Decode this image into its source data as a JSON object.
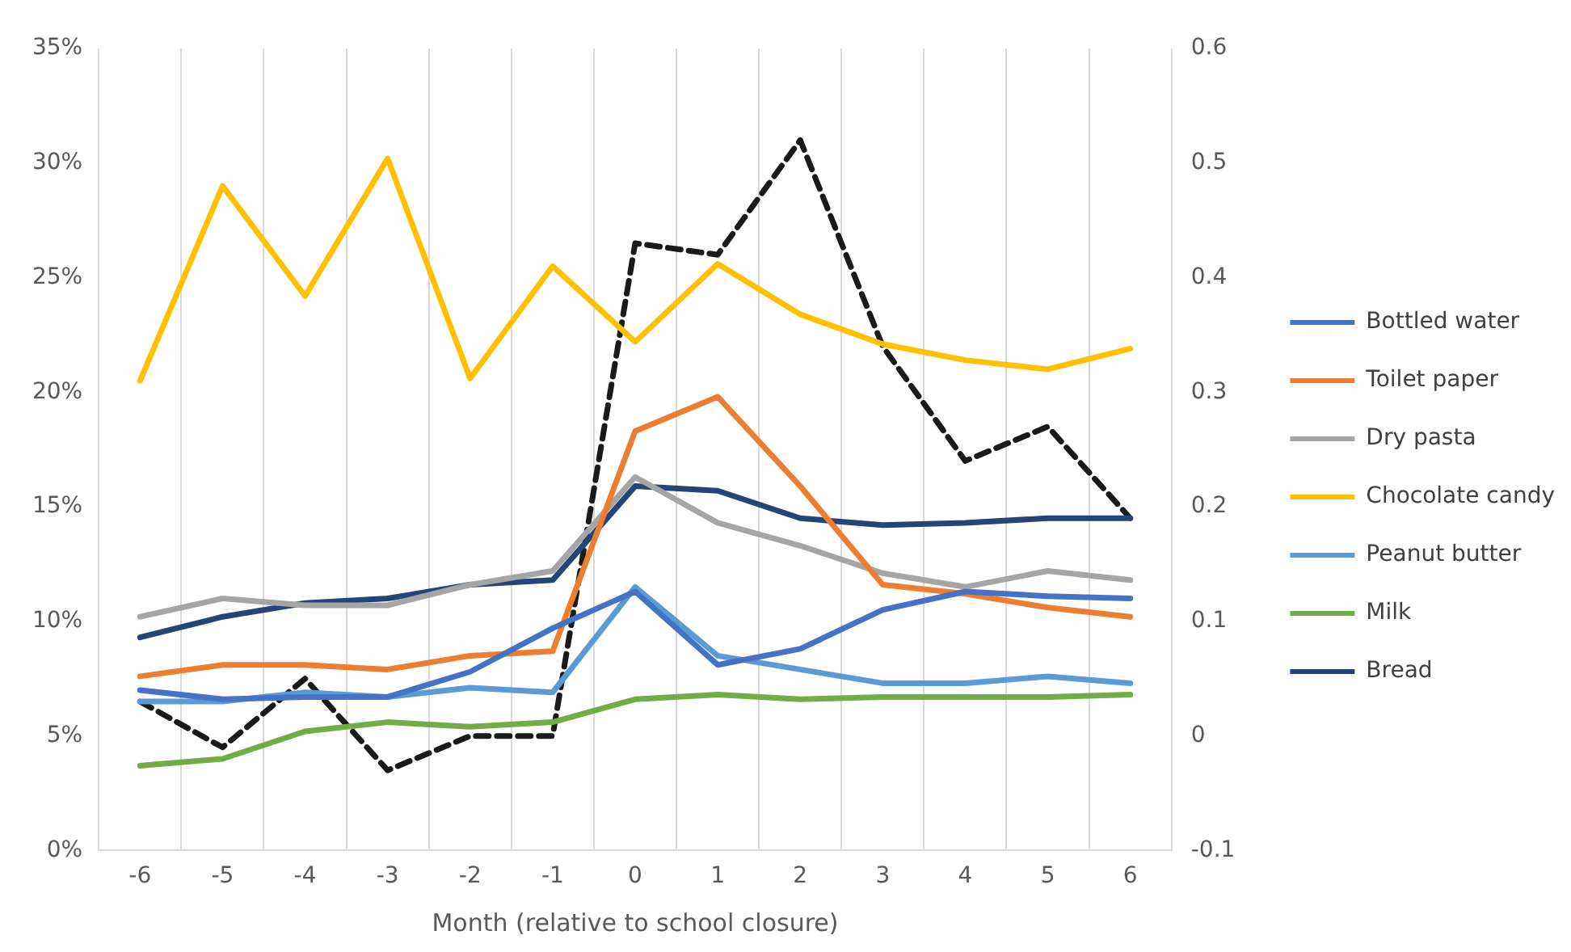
{
  "chart_data": {
    "type": "line",
    "xlabel": "Month (relative to school closure)",
    "categories": [
      "-6",
      "-5",
      "-4",
      "-3",
      "-2",
      "-1",
      "0",
      "1",
      "2",
      "3",
      "4",
      "5",
      "6"
    ],
    "series": [
      {
        "name": "Bottled water",
        "color": "#4472c4",
        "values": [
          7.0,
          6.6,
          6.7,
          6.7,
          7.8,
          9.7,
          11.3,
          8.1,
          8.8,
          10.5,
          11.3,
          11.1,
          11.0
        ]
      },
      {
        "name": "Toilet paper",
        "color": "#ed7d31",
        "values": [
          7.6,
          8.1,
          8.1,
          7.9,
          8.5,
          8.7,
          18.3,
          19.8,
          15.9,
          11.6,
          11.2,
          10.6,
          10.2
        ]
      },
      {
        "name": "Dry pasta",
        "color": "#a5a5a5",
        "values": [
          10.2,
          11.0,
          10.7,
          10.7,
          11.6,
          12.2,
          16.3,
          14.3,
          13.3,
          12.1,
          11.5,
          12.2,
          11.8
        ]
      },
      {
        "name": "Chocolate candy",
        "color": "#ffc000",
        "values": [
          20.5,
          29.0,
          24.2,
          30.2,
          20.6,
          25.5,
          22.2,
          25.6,
          23.4,
          22.1,
          21.4,
          21.0,
          21.9
        ]
      },
      {
        "name": "Peanut butter",
        "color": "#5b9bd5",
        "values": [
          6.5,
          6.5,
          6.9,
          6.7,
          7.1,
          6.9,
          11.5,
          8.5,
          7.9,
          7.3,
          7.3,
          7.6,
          7.3
        ]
      },
      {
        "name": "Milk",
        "color": "#70ad47",
        "values": [
          3.7,
          4.0,
          5.2,
          5.6,
          5.4,
          5.6,
          6.6,
          6.8,
          6.6,
          6.7,
          6.7,
          6.7,
          6.8
        ]
      },
      {
        "name": "Bread",
        "color": "#264478",
        "values": [
          9.3,
          10.2,
          10.8,
          11.0,
          11.6,
          11.8,
          15.9,
          15.7,
          14.5,
          14.2,
          14.3,
          14.5,
          14.5
        ]
      },
      {
        "color": "#1a1a1a",
        "axis": "y2",
        "line_style": "dashed",
        "values": [
          0.03,
          -0.01,
          0.05,
          -0.03,
          0.0,
          0.0,
          0.43,
          0.42,
          0.52,
          0.34,
          0.24,
          0.27,
          0.19
        ]
      }
    ],
    "ylim": [
      0,
      35
    ],
    "yticks": [
      {
        "value": 0,
        "label": "0%"
      },
      {
        "value": 5,
        "label": "5%"
      },
      {
        "value": 10,
        "label": "10%"
      },
      {
        "value": 15,
        "label": "15%"
      },
      {
        "value": 20,
        "label": "20%"
      },
      {
        "value": 25,
        "label": "25%"
      },
      {
        "value": 30,
        "label": "30%"
      },
      {
        "value": 35,
        "label": "35%"
      }
    ],
    "y2lim": [
      -0.1,
      0.6
    ],
    "y2ticks": [
      -0.1,
      0,
      0.1,
      0.2,
      0.3,
      0.4,
      0.5,
      0.6
    ],
    "grid": "x",
    "legend": "right",
    "marker": "none",
    "line_style": "solid"
  }
}
